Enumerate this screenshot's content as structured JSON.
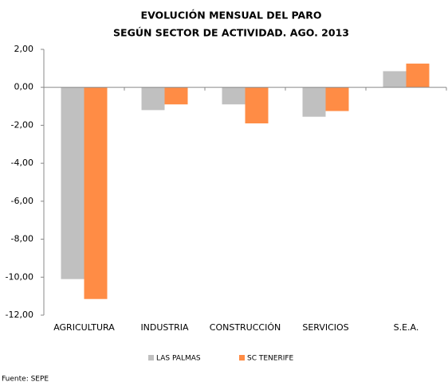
{
  "chart_data": {
    "type": "bar",
    "title": [
      "EVOLUCIÓN MENSUAL DEL PARO",
      "SEGÚN SECTOR DE ACTIVIDAD. AGO. 2013"
    ],
    "categories": [
      "AGRICULTURA",
      "INDUSTRIA",
      "CONSTRUCCIÓN",
      "SERVICIOS",
      "S.E.A."
    ],
    "series": [
      {
        "name": "LAS PALMAS",
        "color": "#c0c0c0",
        "values": [
          -10.1,
          -1.2,
          -0.9,
          -1.55,
          0.85
        ]
      },
      {
        "name": "SC TENERIFE",
        "color": "#ff8c45",
        "values": [
          -11.15,
          -0.9,
          -1.9,
          -1.25,
          1.25
        ]
      }
    ],
    "ylim": [
      -12,
      2
    ],
    "yticks": [
      {
        "value": -12,
        "label": "-12,00"
      },
      {
        "value": -10,
        "label": "-10,00"
      },
      {
        "value": -8,
        "label": "-8,00"
      },
      {
        "value": -6,
        "label": "-6,00"
      },
      {
        "value": -4,
        "label": "-4,00"
      },
      {
        "value": -2,
        "label": "-2,00"
      },
      {
        "value": 0,
        "label": "0,00"
      },
      {
        "value": 2,
        "label": "2,00"
      }
    ],
    "legend": "bottom",
    "source": "Fuente: SEPE"
  }
}
